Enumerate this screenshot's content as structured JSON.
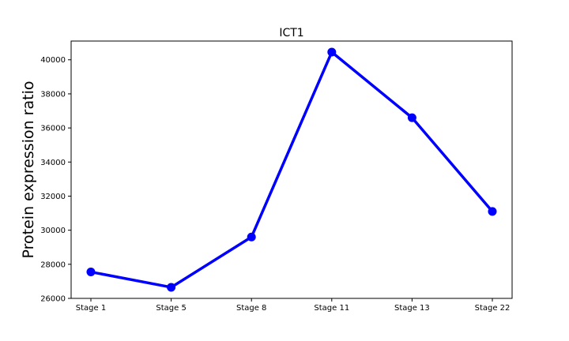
{
  "chart_data": {
    "type": "line",
    "title": "ICT1",
    "xlabel": "",
    "ylabel": "Protein expression ratio",
    "categories": [
      "Stage 1",
      "Stage 5",
      "Stage 8",
      "Stage 11",
      "Stage 13",
      "Stage 22"
    ],
    "series": [
      {
        "values": [
          27550,
          26650,
          29600,
          40450,
          36600,
          31100
        ],
        "color": "#0000ff"
      }
    ],
    "ylim": [
      26000,
      41100
    ],
    "yticks": [
      26000,
      28000,
      30000,
      32000,
      34000,
      36000,
      38000,
      40000
    ],
    "grid": false,
    "legend": "none"
  }
}
